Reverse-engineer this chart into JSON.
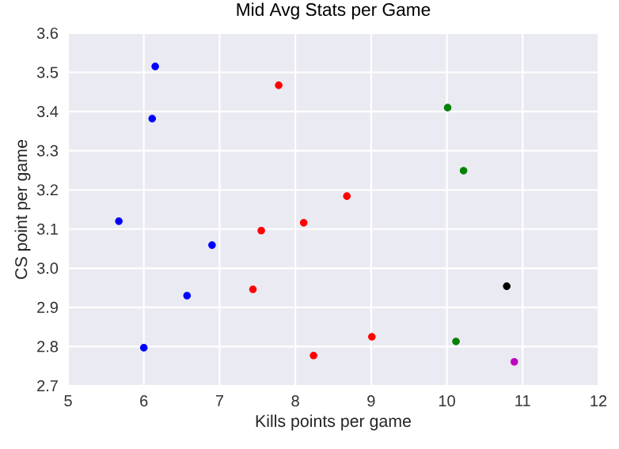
{
  "chart_data": {
    "type": "scatter",
    "title": "Mid Avg Stats per Game",
    "xlabel": "Kills points per game",
    "ylabel": "CS point per game",
    "x": [
      6.15,
      6.11,
      5.67,
      6.9,
      6.57,
      6.0,
      7.78,
      8.68,
      7.55,
      8.11,
      7.44,
      8.24,
      9.01,
      10.01,
      10.22,
      10.12,
      10.79,
      10.89
    ],
    "values": [
      3.515,
      3.382,
      3.12,
      3.059,
      2.93,
      2.797,
      3.467,
      3.184,
      3.096,
      3.116,
      2.946,
      2.777,
      2.825,
      3.41,
      3.249,
      2.813,
      2.954,
      2.761
    ],
    "colors": [
      "#0000ff",
      "#0000ff",
      "#0000ff",
      "#0000ff",
      "#0000ff",
      "#0000ff",
      "#ff0000",
      "#ff0000",
      "#ff0000",
      "#ff0000",
      "#ff0000",
      "#ff0000",
      "#ff0000",
      "#008000",
      "#008000",
      "#008000",
      "#000000",
      "#bf00bf"
    ],
    "xlim": [
      5,
      12
    ],
    "ylim": [
      2.7,
      3.6
    ],
    "xticks": [
      5,
      6,
      7,
      8,
      9,
      10,
      11,
      12
    ],
    "yticks": [
      2.7,
      2.8,
      2.9,
      {
        "value": 3.0,
        "label": "3.0"
      },
      3.1,
      3.2,
      3.3,
      3.4,
      3.5,
      3.6
    ],
    "grid": true,
    "marker": "circle"
  }
}
